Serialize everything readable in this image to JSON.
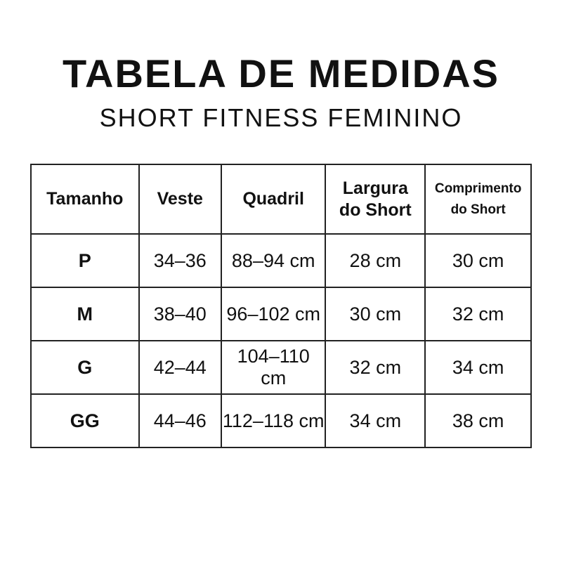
{
  "title": "TABELA DE MEDIDAS",
  "subtitle": "SHORT FITNESS FEMININO",
  "table": {
    "headers": [
      "Tamanho",
      "Veste",
      "Quadril",
      "Largura do Short",
      "Comprimento do Short"
    ],
    "rows": [
      [
        "P",
        "34–36",
        "88–94 cm",
        "28 cm",
        "30 cm"
      ],
      [
        "M",
        "38–40",
        "96–102 cm",
        "30 cm",
        "32 cm"
      ],
      [
        "G",
        "42–44",
        "104–110 cm",
        "32 cm",
        "34 cm"
      ],
      [
        "GG",
        "44–46",
        "112–118 cm",
        "34 cm",
        "38 cm"
      ]
    ]
  }
}
